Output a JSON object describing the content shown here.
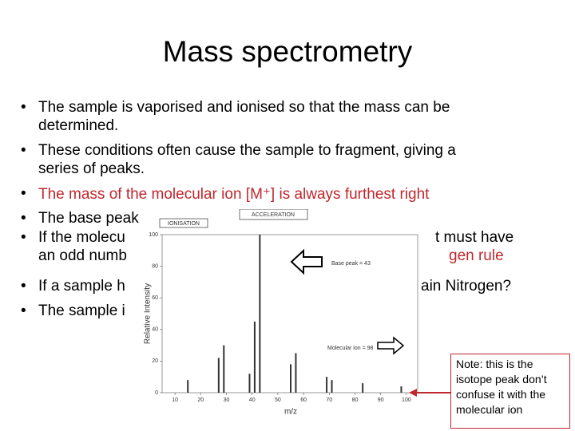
{
  "title": "Mass spectrometry",
  "bullets": [
    [
      "The sample is vaporised and ionised so that the mass can be",
      "determined."
    ],
    [
      "These conditions often cause the sample to fragment, giving a",
      "series of peaks."
    ],
    [
      "The mass of the molecular ion [M⁺] is always furthest right"
    ],
    [
      "The base peak is always the highest peak."
    ]
  ],
  "partial_bullets": [
    {
      "left": "If the molecu",
      "right": "t must have"
    },
    {
      "left": "an odd numb",
      "right": "gen rule"
    },
    {
      "left": "If a sample h",
      "right": "ain Nitrogen?"
    },
    {
      "left": "The sample i",
      "right": ""
    }
  ],
  "labels": {
    "ionisation": "IONISATION",
    "acceleration": "ACCELERATION"
  },
  "note": "Note: this is the isotope peak don’t confuse it with the molecular ion",
  "chart_data": {
    "type": "bar",
    "x_label": "m/z",
    "y_label": "Relative Intensity",
    "base_peak_label": "Base peak = 43",
    "molecular_ion_label": "Molecular ion = 98",
    "x": [
      15,
      27,
      29,
      39,
      41,
      43,
      55,
      57,
      69,
      71,
      83,
      98
    ],
    "values": [
      8,
      22,
      30,
      12,
      45,
      100,
      18,
      25,
      10,
      8,
      6,
      4
    ],
    "color": "#333333",
    "xlim": [
      5,
      105
    ],
    "ylim": [
      0,
      100
    ],
    "xticks": [
      10,
      20,
      30,
      40,
      50,
      60,
      70,
      80,
      90,
      100
    ],
    "yticks": [
      0,
      20,
      40,
      60,
      80,
      100
    ]
  }
}
